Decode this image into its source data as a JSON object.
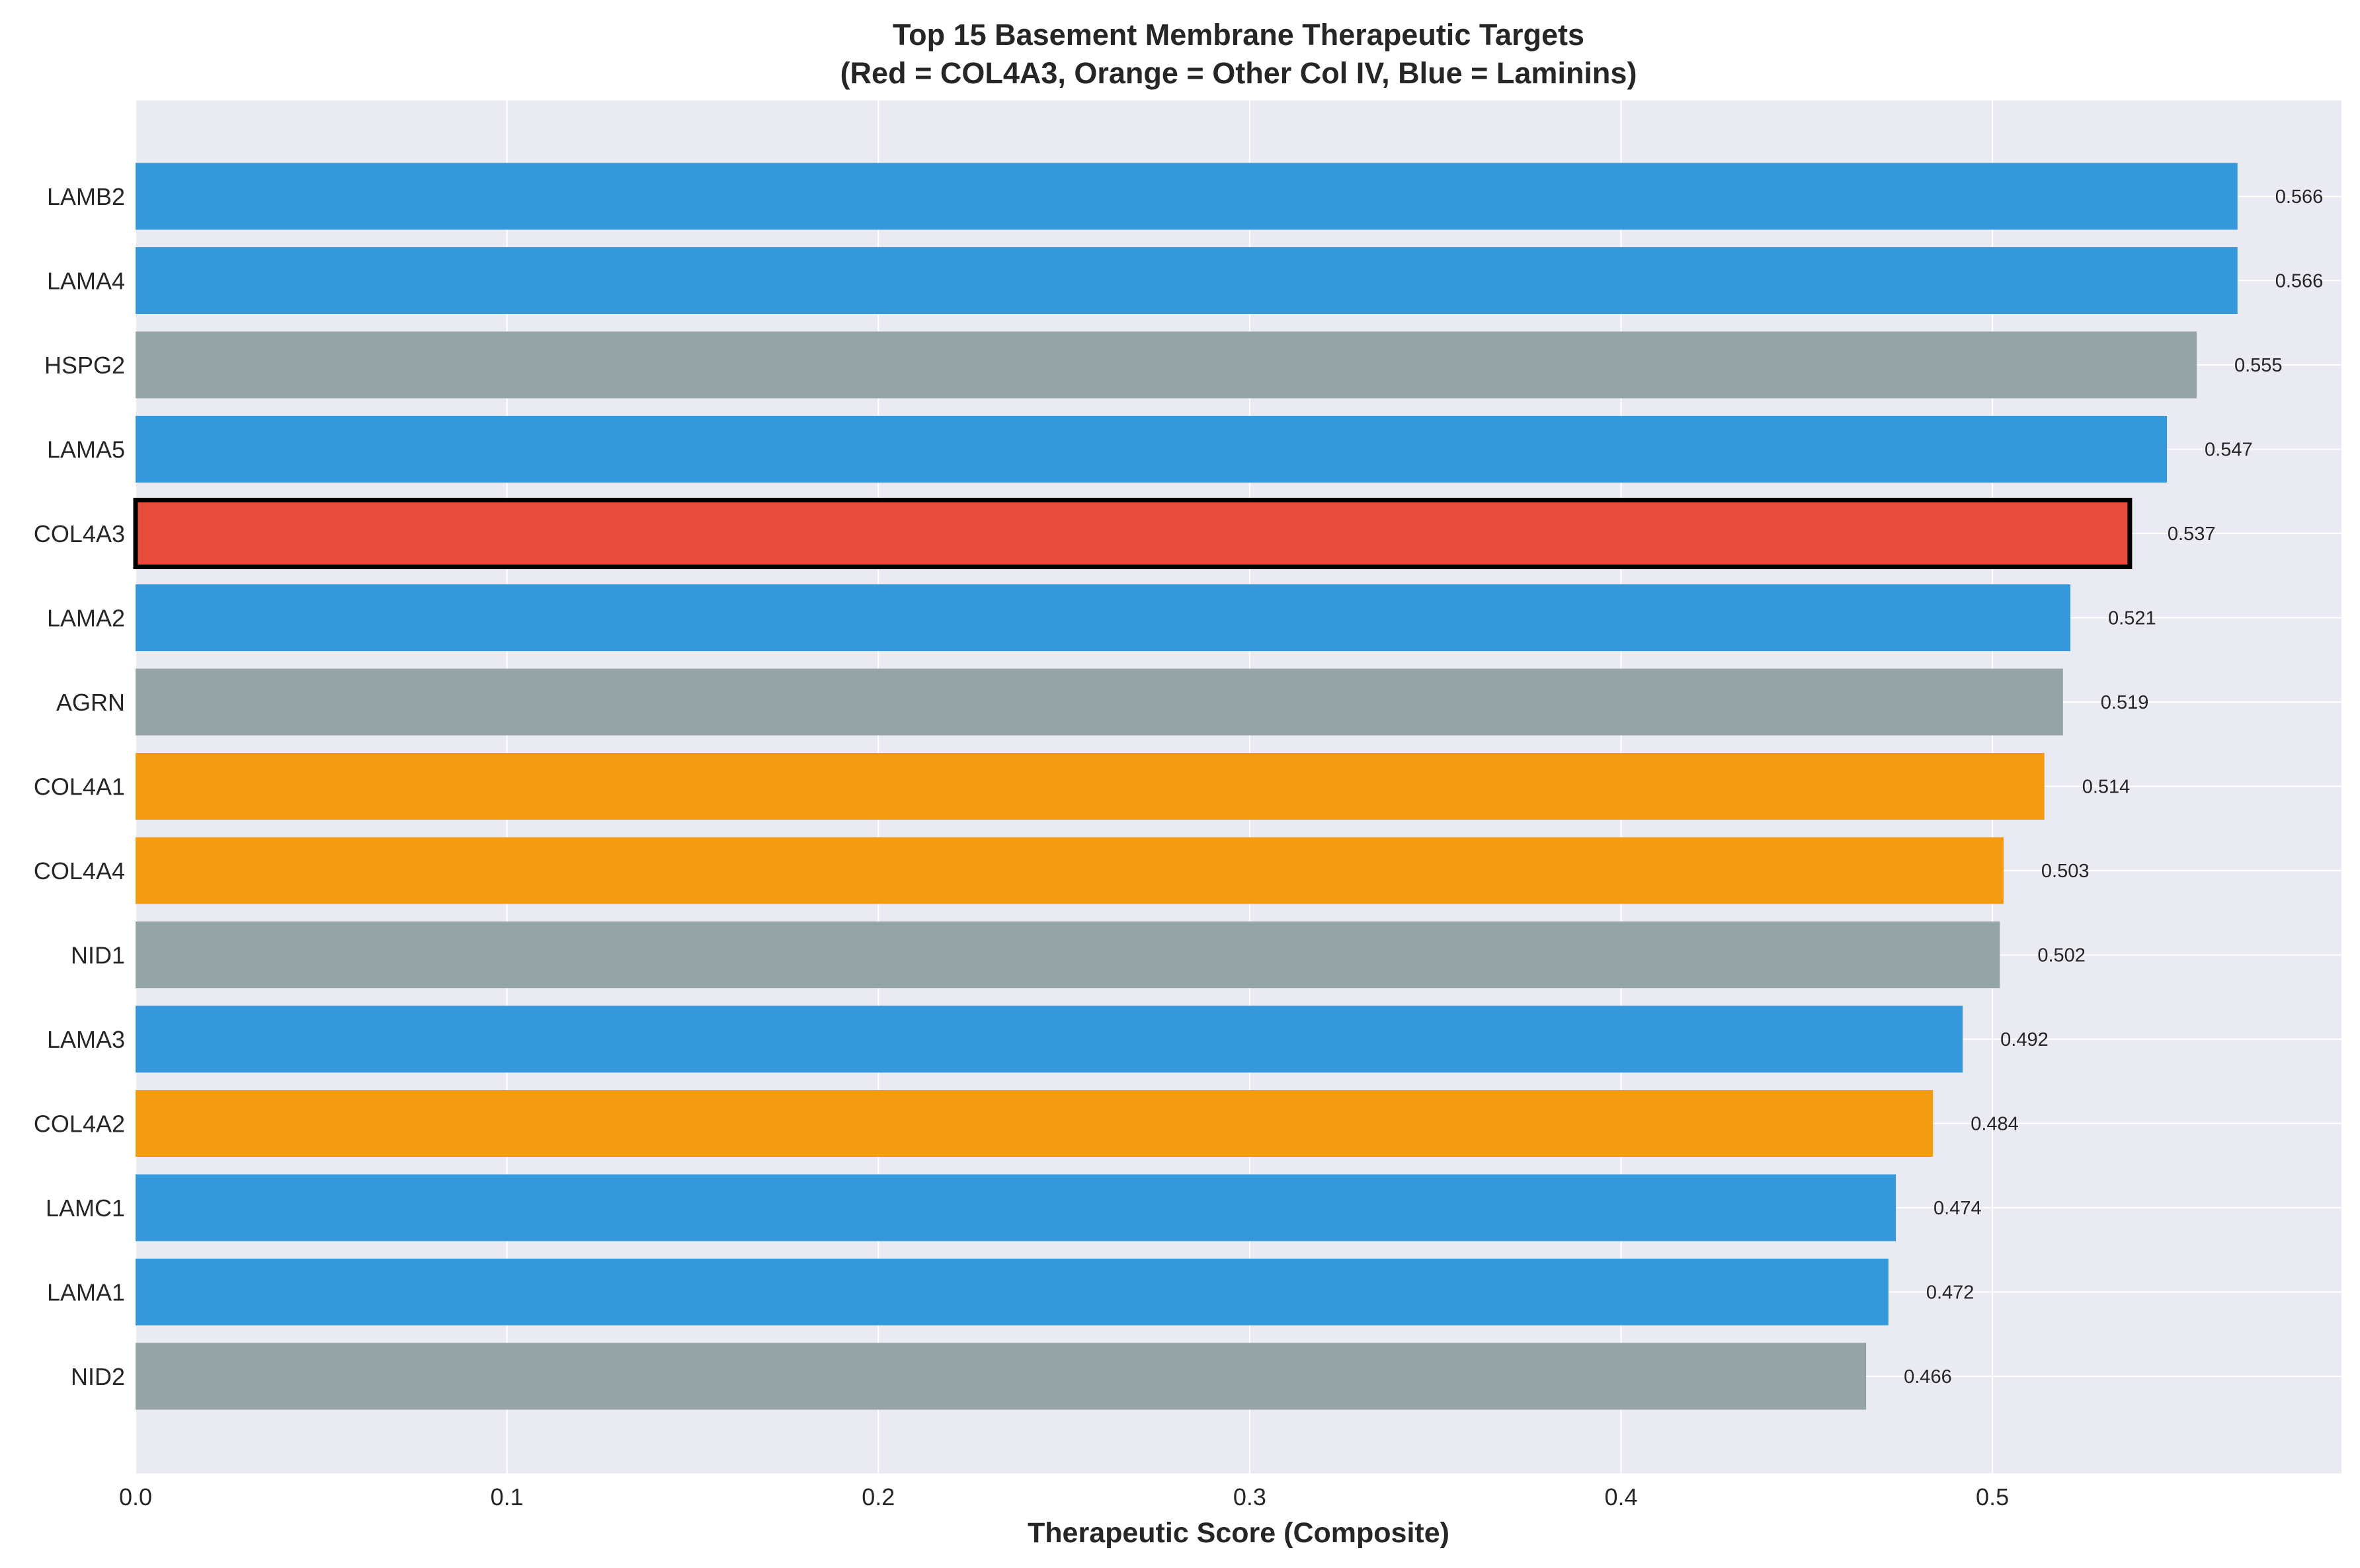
{
  "chart_data": {
    "type": "bar",
    "orientation": "horizontal",
    "title_line1": "Top 15 Basement Membrane Therapeutic Targets",
    "title_line2": "(Red = COL4A3, Orange = Other Col IV, Blue = Laminins)",
    "xlabel": "Therapeutic Score (Composite)",
    "ylabel": "",
    "xlim": [
      0,
      0.594
    ],
    "xticks": [
      0.0,
      0.1,
      0.2,
      0.3,
      0.4,
      0.5
    ],
    "xtick_labels": [
      "0.0",
      "0.1",
      "0.2",
      "0.3",
      "0.4",
      "0.5"
    ],
    "grid": true,
    "categories": [
      "LAMB2",
      "LAMA4",
      "HSPG2",
      "LAMA5",
      "COL4A3",
      "LAMA2",
      "AGRN",
      "COL4A1",
      "COL4A4",
      "NID1",
      "LAMA3",
      "COL4A2",
      "LAMC1",
      "LAMA1",
      "NID2"
    ],
    "values": [
      0.566,
      0.566,
      0.555,
      0.547,
      0.537,
      0.521,
      0.519,
      0.514,
      0.503,
      0.502,
      0.492,
      0.484,
      0.474,
      0.472,
      0.466
    ],
    "value_labels": [
      "0.566",
      "0.566",
      "0.555",
      "0.547",
      "0.537",
      "0.521",
      "0.519",
      "0.514",
      "0.503",
      "0.502",
      "0.492",
      "0.484",
      "0.474",
      "0.472",
      "0.466"
    ],
    "groups": [
      "laminin",
      "laminin",
      "other",
      "laminin",
      "col4a3",
      "laminin",
      "other",
      "col4",
      "col4",
      "other",
      "laminin",
      "col4",
      "laminin",
      "laminin",
      "other"
    ],
    "group_colors": {
      "col4a3": "#e74c3c",
      "col4": "#f39c12",
      "laminin": "#3498db",
      "other": "#95a5a6"
    },
    "highlight": "COL4A3",
    "background_color": "#eaeaf2",
    "grid_color": "#ffffff"
  }
}
